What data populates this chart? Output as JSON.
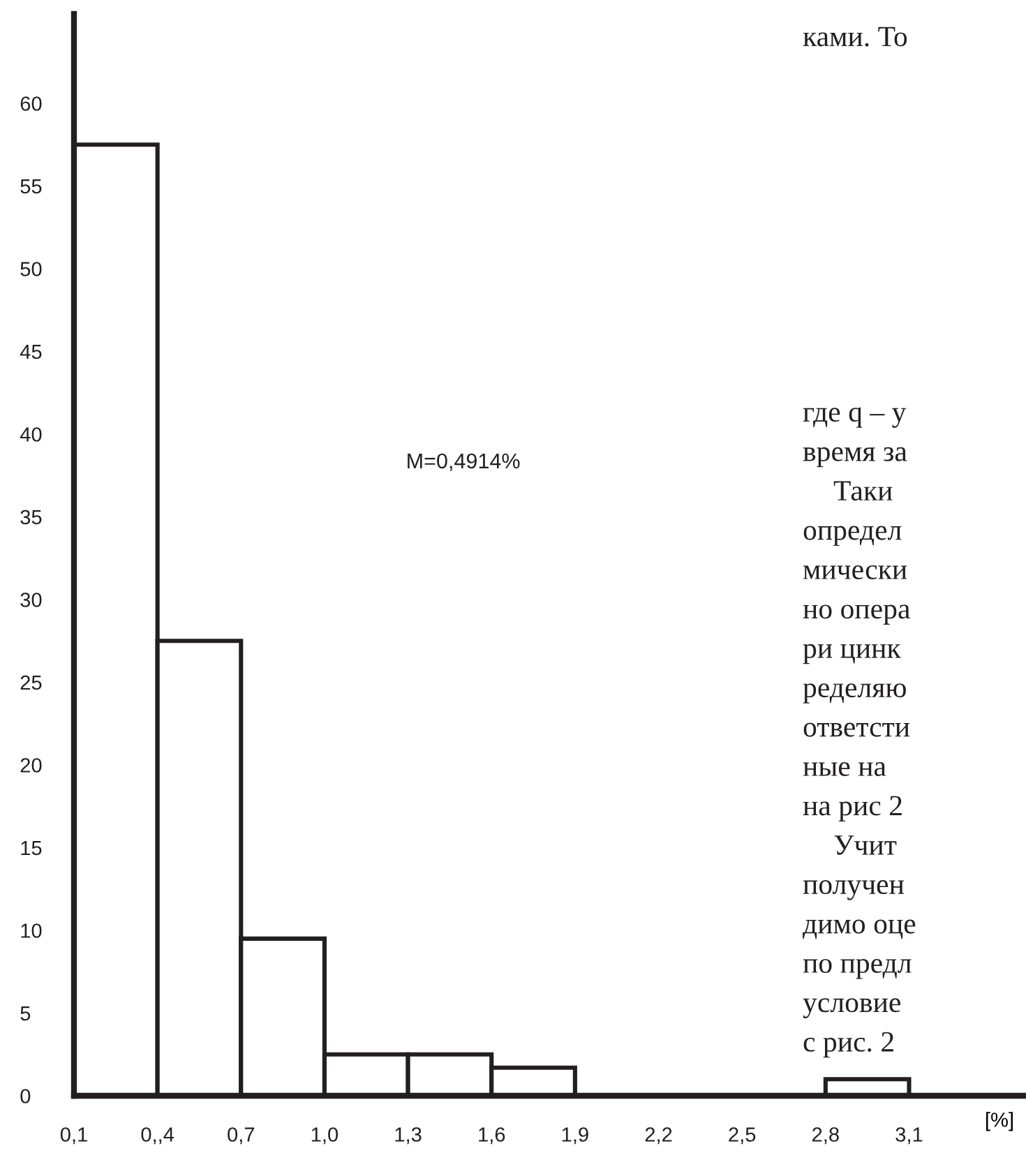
{
  "chart_data": {
    "type": "histogram",
    "xlabel": "[%]",
    "bins": [
      0.1,
      0.4,
      0.7,
      1.0,
      1.3,
      1.6,
      1.9,
      2.2,
      2.5,
      2.8,
      3.1
    ],
    "values": [
      57.5,
      27.5,
      9.5,
      2.5,
      2.5,
      1.7,
      0,
      0,
      0,
      1.0
    ],
    "color": "#ffffff",
    "xlim": [
      0.1,
      3.51
    ],
    "ylim": [
      0,
      65.4
    ],
    "xticks": [
      {
        "value": 0.1,
        "label": "0,1"
      },
      {
        "value": 0.4,
        "label": "0,,4"
      },
      {
        "value": 0.7,
        "label": "0,7"
      },
      {
        "value": 1.0,
        "label": "1,0"
      },
      {
        "value": 1.3,
        "label": "1,3"
      },
      {
        "value": 1.6,
        "label": "1,6"
      },
      {
        "value": 1.9,
        "label": "1,9"
      },
      {
        "value": 2.2,
        "label": "2,2"
      },
      {
        "value": 2.5,
        "label": "2,5"
      },
      {
        "value": 2.8,
        "label": "2,8"
      },
      {
        "value": 3.1,
        "label": "3,1"
      }
    ],
    "yticks": [
      0,
      5,
      10,
      15,
      20,
      25,
      30,
      35,
      40,
      45,
      50,
      55,
      60
    ],
    "grid": false,
    "legend": false,
    "annotations": [
      "M=0,4914%",
      "ками. То",
      "где q – у",
      "время за",
      "Таки",
      "определ",
      "мически",
      "но опера",
      "ри цинк",
      "ределяю",
      "ответсти",
      "ные на",
      "на рис 2",
      "Учит",
      "получен",
      "димо оце",
      "по предл",
      "условие",
      "с рис. 2"
    ]
  }
}
